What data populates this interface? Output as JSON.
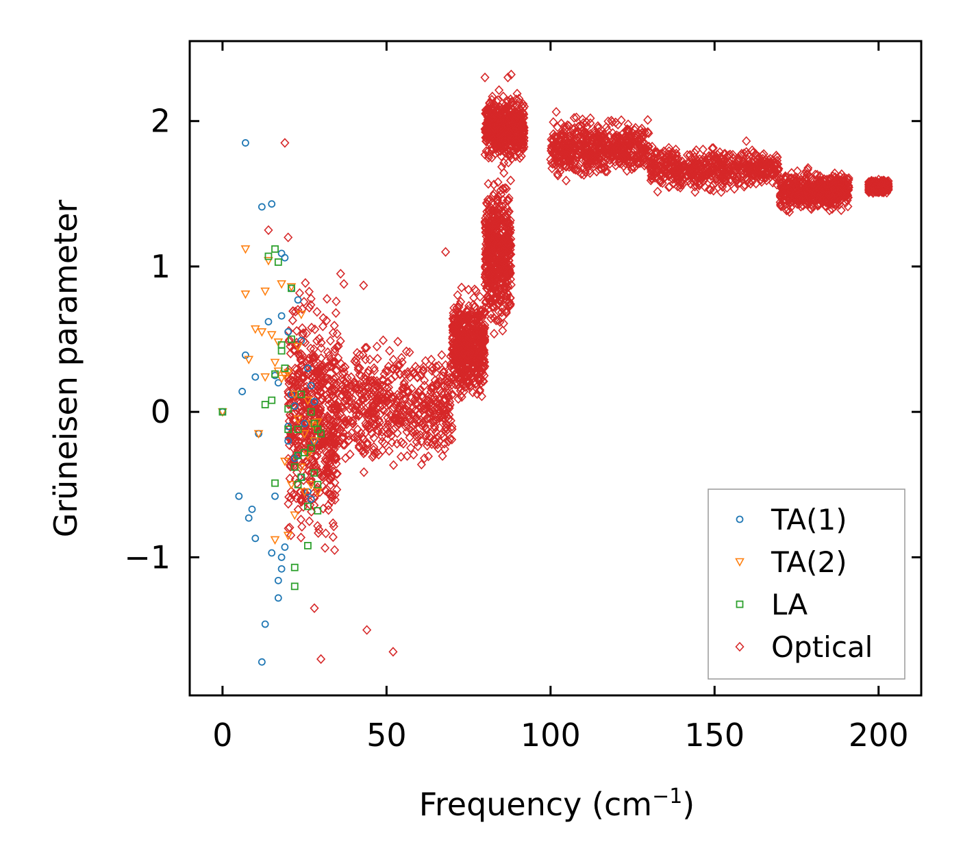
{
  "chart_data": {
    "type": "scatter",
    "xlabel": "Frequency (cm",
    "xlabel_sup": "−1",
    "xlabel_end": ")",
    "ylabel": "Grüneisen parameter",
    "xlim": [
      -10,
      213
    ],
    "ylim": [
      -1.95,
      2.55
    ],
    "xticks": [
      0,
      50,
      100,
      150,
      200
    ],
    "xtick_labels": [
      "0",
      "50",
      "100",
      "150",
      "200"
    ],
    "yticks": [
      -1,
      0,
      1,
      2
    ],
    "ytick_labels": [
      "−1",
      "0",
      "1",
      "2"
    ],
    "grid": false,
    "legend_position": "bottom-right",
    "series": [
      {
        "name": "TA(1)",
        "marker": "circle",
        "color": "#1f77b4",
        "points": [
          [
            0,
            0
          ],
          [
            5,
            -0.58
          ],
          [
            6,
            0.14
          ],
          [
            7,
            1.85
          ],
          [
            7,
            0.39
          ],
          [
            8,
            -0.73
          ],
          [
            9,
            -0.67
          ],
          [
            10,
            -0.87
          ],
          [
            10,
            0.24
          ],
          [
            11,
            -0.15
          ],
          [
            12,
            -1.72
          ],
          [
            12,
            1.41
          ],
          [
            13,
            -1.46
          ],
          [
            14,
            0.62
          ],
          [
            15,
            1.43
          ],
          [
            15,
            -0.97
          ],
          [
            16,
            -0.58
          ],
          [
            16,
            0.25
          ],
          [
            17,
            -1.28
          ],
          [
            17,
            0.2
          ],
          [
            17,
            -1.16
          ],
          [
            18,
            -1.08
          ],
          [
            18,
            -1.0
          ],
          [
            18,
            1.09
          ],
          [
            18,
            0.66
          ],
          [
            19,
            -0.93
          ],
          [
            19,
            1.06
          ],
          [
            20,
            -0.1
          ],
          [
            20,
            0.55
          ],
          [
            20,
            -0.2
          ],
          [
            21,
            0.85
          ],
          [
            21,
            0.12
          ],
          [
            22,
            0.04
          ],
          [
            22,
            -0.32
          ],
          [
            23,
            0.77
          ],
          [
            23,
            -0.3
          ],
          [
            24,
            0.49
          ],
          [
            24,
            -0.45
          ],
          [
            25,
            -0.08
          ],
          [
            26,
            0.3
          ],
          [
            26,
            -0.55
          ],
          [
            27,
            0.18
          ],
          [
            27,
            -0.6
          ],
          [
            28,
            0.07
          ],
          [
            28,
            -0.2
          ]
        ]
      },
      {
        "name": "TA(2)",
        "marker": "triangle-down",
        "color": "#ff7f0e",
        "points": [
          [
            0,
            0
          ],
          [
            7,
            1.12
          ],
          [
            7,
            0.81
          ],
          [
            8,
            0.36
          ],
          [
            10,
            0.57
          ],
          [
            11,
            -0.15
          ],
          [
            12,
            0.55
          ],
          [
            13,
            0.83
          ],
          [
            13,
            0.24
          ],
          [
            14,
            1.04
          ],
          [
            15,
            0.53
          ],
          [
            16,
            0.34
          ],
          [
            16,
            -0.88
          ],
          [
            17,
            0.28
          ],
          [
            17,
            0.48
          ],
          [
            18,
            0.88
          ],
          [
            18,
            0.23
          ],
          [
            19,
            0.25
          ],
          [
            19,
            -0.34
          ],
          [
            20,
            0.27
          ],
          [
            20,
            -0.85
          ],
          [
            21,
            -0.5
          ],
          [
            21,
            0.86
          ],
          [
            22,
            0.12
          ],
          [
            22,
            -0.71
          ],
          [
            23,
            0.45
          ],
          [
            23,
            -0.05
          ],
          [
            24,
            0.67
          ],
          [
            24,
            -0.38
          ],
          [
            25,
            -0.15
          ],
          [
            25,
            -0.55
          ],
          [
            26,
            0.08
          ],
          [
            26,
            -0.3
          ],
          [
            27,
            -0.08
          ],
          [
            27,
            -0.5
          ],
          [
            28,
            -0.1
          ],
          [
            28,
            -0.2
          ],
          [
            29,
            -0.07
          ],
          [
            29,
            -0.55
          ]
        ]
      },
      {
        "name": "LA",
        "marker": "square",
        "color": "#2ca02c",
        "points": [
          [
            0,
            0
          ],
          [
            13,
            0.05
          ],
          [
            14,
            1.07
          ],
          [
            15,
            0.08
          ],
          [
            16,
            1.12
          ],
          [
            16,
            0.26
          ],
          [
            16,
            -0.49
          ],
          [
            17,
            1.03
          ],
          [
            18,
            0.42
          ],
          [
            18,
            0.46
          ],
          [
            19,
            0.3
          ],
          [
            20,
            0.02
          ],
          [
            20,
            -0.12
          ],
          [
            21,
            0.85
          ],
          [
            21,
            0.5
          ],
          [
            22,
            -0.38
          ],
          [
            22,
            -1.07
          ],
          [
            22,
            -1.2
          ],
          [
            23,
            -0.12
          ],
          [
            23,
            -0.3
          ],
          [
            23,
            -0.5
          ],
          [
            24,
            0.12
          ],
          [
            24,
            -0.45
          ],
          [
            25,
            -0.28
          ],
          [
            26,
            -0.65
          ],
          [
            26,
            -0.92
          ],
          [
            27,
            0.0
          ],
          [
            27,
            -0.25
          ],
          [
            28,
            -0.08
          ],
          [
            28,
            -0.42
          ],
          [
            29,
            -0.68
          ],
          [
            29,
            -0.12
          ],
          [
            29,
            -0.5
          ],
          [
            30,
            -0.15
          ]
        ]
      },
      {
        "name": "Optical",
        "marker": "diamond",
        "color": "#d62728",
        "generated": true,
        "seed": 12345,
        "count": 5200,
        "scatter_outliers": [
          [
            19,
            1.85
          ],
          [
            14,
            1.25
          ],
          [
            20,
            1.2
          ],
          [
            43,
            0.87
          ],
          [
            52,
            -1.65
          ],
          [
            30,
            -1.7
          ],
          [
            44,
            -1.5
          ],
          [
            68,
            1.1
          ],
          [
            88,
            2.32
          ],
          [
            87,
            2.3
          ],
          [
            92,
            2.1
          ],
          [
            80,
            2.3
          ],
          [
            28,
            -1.35
          ],
          [
            37,
            0.88
          ],
          [
            36,
            0.95
          ]
        ],
        "envelope": [
          {
            "x": [
              20,
              35
            ],
            "y_center": -0.05,
            "y_spread": 1.4
          },
          {
            "x": [
              35,
              70
            ],
            "y_center": 0.05,
            "y_spread": 0.7
          },
          {
            "x": [
              70,
              80
            ],
            "y_center": 0.45,
            "y_spread": 0.55
          },
          {
            "x": [
              80,
              88
            ],
            "y_center": 1.1,
            "y_spread": 0.85
          },
          {
            "x": [
              80,
              92
            ],
            "y_center": 1.95,
            "y_spread": 0.35
          },
          {
            "x": [
              100,
              130
            ],
            "y_center": 1.82,
            "y_spread": 0.33
          },
          {
            "x": [
              130,
              170
            ],
            "y_center": 1.67,
            "y_spread": 0.25
          },
          {
            "x": [
              170,
              191
            ],
            "y_center": 1.52,
            "y_spread": 0.22
          },
          {
            "x": [
              197,
              203
            ],
            "y_center": 1.55,
            "y_spread": 0.07
          }
        ]
      }
    ]
  }
}
